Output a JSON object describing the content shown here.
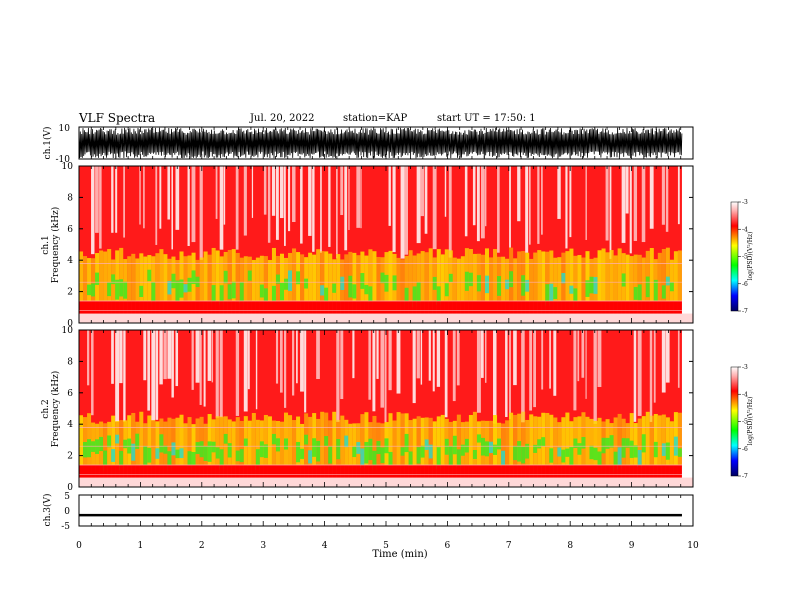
{
  "header": {
    "title": "VLF Spectra",
    "date": "Jul. 20, 2022",
    "station": "station=KAP",
    "start": "start UT = 17:50: 1"
  },
  "chart_data": [
    {
      "type": "line",
      "ylabel": "ch.1(V)",
      "ylim": [
        -10,
        10
      ],
      "yticks": [
        "10",
        "-10"
      ],
      "note": "dense oscillating voltage trace"
    },
    {
      "type": "heatmap",
      "ylabel_line1": "ch.1",
      "ylabel_line2": "Frequency (kHz)",
      "ylim": [
        0,
        10
      ],
      "yticks": [
        "0",
        "2",
        "4",
        "6",
        "8",
        "10"
      ],
      "colorbar": {
        "label": "log(PSD)(V²/Hz)",
        "range": [
          -7,
          -3
        ],
        "ticks": [
          "-3",
          "-4",
          "-5",
          "-6",
          "-7"
        ]
      }
    },
    {
      "type": "heatmap",
      "ylabel_line1": "ch.2",
      "ylabel_line2": "Frequency (kHz)",
      "ylim": [
        0,
        10
      ],
      "yticks": [
        "0",
        "2",
        "4",
        "6",
        "8",
        "10"
      ],
      "colorbar": {
        "label": "log(PSD)(V²/Hz)",
        "range": [
          -7,
          -3
        ],
        "ticks": [
          "-3",
          "-4",
          "-5",
          "-6",
          "-7"
        ]
      }
    },
    {
      "type": "line",
      "ylabel": "ch.3(V)",
      "ylim": [
        -5,
        5
      ],
      "yticks": [
        "5",
        "0",
        "-5"
      ],
      "note": "nearly constant trace around -1.5 V"
    }
  ],
  "xaxis": {
    "label": "Time (min)",
    "range": [
      0,
      10
    ],
    "ticks": [
      "0",
      "1",
      "2",
      "3",
      "4",
      "5",
      "6",
      "7",
      "8",
      "9",
      "10"
    ]
  },
  "colors": {
    "spectrogram_high": "#ff0000",
    "spectrogram_mid": "#ffff00",
    "spectrogram_low": "#00ff00",
    "trace": "#000000"
  }
}
